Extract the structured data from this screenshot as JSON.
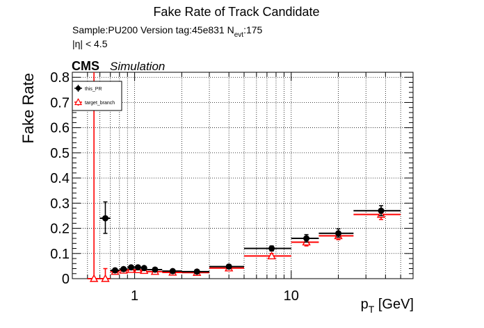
{
  "header": {
    "title": "Fake Rate of Track Candidate",
    "sample_line_a": "Sample:PU200   Version tag:45e831  N",
    "sample_line_sub": "evt",
    "sample_line_b": ":175",
    "eta_line": "|η| < 4.5",
    "cms": "CMS",
    "simulation": "Simulation"
  },
  "chart_data": {
    "type": "scatter",
    "title": "Fake Rate of Track Candidate",
    "xlabel_main": "p",
    "xlabel_sub": "T",
    "xlabel_unit": " [GeV]",
    "ylabel": "Fake Rate",
    "x_scale": "log",
    "xlim": [
      0.4,
      60
    ],
    "ylim": [
      0,
      0.82
    ],
    "y_ticks": [
      0,
      0.1,
      0.2,
      0.3,
      0.4,
      0.5,
      0.6,
      0.7,
      0.8
    ],
    "y_tick_labels": [
      "0",
      "0.1",
      "0.2",
      "0.3",
      "0.4",
      "0.5",
      "0.6",
      "0.7",
      "0.8"
    ],
    "x_ticks": [
      1,
      10
    ],
    "x_tick_labels": [
      "1",
      "10"
    ],
    "grid": true,
    "legend_position": "top-left",
    "series": [
      {
        "name": "this_PR",
        "color": "#000000",
        "marker": "circle",
        "points": [
          {
            "x": 0.65,
            "xlo": 0.6,
            "xhi": 0.7,
            "y": 0.24,
            "ylo": 0.18,
            "yhi": 0.305
          },
          {
            "x": 0.75,
            "xlo": 0.7,
            "xhi": 0.8,
            "y": 0.033,
            "ylo": 0.025,
            "yhi": 0.041
          },
          {
            "x": 0.85,
            "xlo": 0.8,
            "xhi": 0.9,
            "y": 0.038,
            "ylo": 0.031,
            "yhi": 0.045
          },
          {
            "x": 0.95,
            "xlo": 0.9,
            "xhi": 1.0,
            "y": 0.045,
            "ylo": 0.039,
            "yhi": 0.051
          },
          {
            "x": 1.05,
            "xlo": 1.0,
            "xhi": 1.1,
            "y": 0.045,
            "ylo": 0.039,
            "yhi": 0.051
          },
          {
            "x": 1.15,
            "xlo": 1.1,
            "xhi": 1.2,
            "y": 0.042,
            "ylo": 0.036,
            "yhi": 0.048
          },
          {
            "x": 1.35,
            "xlo": 1.2,
            "xhi": 1.5,
            "y": 0.036,
            "ylo": 0.031,
            "yhi": 0.041
          },
          {
            "x": 1.75,
            "xlo": 1.5,
            "xhi": 2.0,
            "y": 0.03,
            "ylo": 0.025,
            "yhi": 0.035
          },
          {
            "x": 2.5,
            "xlo": 2.0,
            "xhi": 3.0,
            "y": 0.028,
            "ylo": 0.023,
            "yhi": 0.033
          },
          {
            "x": 4.0,
            "xlo": 3.0,
            "xhi": 5.0,
            "y": 0.048,
            "ylo": 0.04,
            "yhi": 0.056
          },
          {
            "x": 7.5,
            "xlo": 5.0,
            "xhi": 10.0,
            "y": 0.12,
            "ylo": 0.11,
            "yhi": 0.13
          },
          {
            "x": 12.5,
            "xlo": 10.0,
            "xhi": 15.0,
            "y": 0.16,
            "ylo": 0.145,
            "yhi": 0.175
          },
          {
            "x": 20.0,
            "xlo": 15.0,
            "xhi": 25.0,
            "y": 0.18,
            "ylo": 0.165,
            "yhi": 0.198
          },
          {
            "x": 37.5,
            "xlo": 25.0,
            "xhi": 50.0,
            "y": 0.27,
            "ylo": 0.25,
            "yhi": 0.29
          }
        ]
      },
      {
        "name": "target_branch",
        "color": "#ff0000",
        "marker": "open-triangle",
        "points": [
          {
            "x": 0.55,
            "xlo": 0.5,
            "xhi": 0.6,
            "y": 0.0,
            "ylo": 0.0,
            "yhi": 0.82
          },
          {
            "x": 0.65,
            "xlo": 0.6,
            "xhi": 0.7,
            "y": 0.0,
            "ylo": 0.0,
            "yhi": 0.04
          },
          {
            "x": 0.75,
            "xlo": 0.7,
            "xhi": 0.8,
            "y": 0.028,
            "ylo": 0.021,
            "yhi": 0.035
          },
          {
            "x": 0.85,
            "xlo": 0.8,
            "xhi": 0.9,
            "y": 0.033,
            "ylo": 0.027,
            "yhi": 0.039
          },
          {
            "x": 0.95,
            "xlo": 0.9,
            "xhi": 1.0,
            "y": 0.036,
            "ylo": 0.03,
            "yhi": 0.042
          },
          {
            "x": 1.05,
            "xlo": 1.0,
            "xhi": 1.1,
            "y": 0.035,
            "ylo": 0.029,
            "yhi": 0.041
          },
          {
            "x": 1.15,
            "xlo": 1.1,
            "xhi": 1.2,
            "y": 0.032,
            "ylo": 0.027,
            "yhi": 0.037
          },
          {
            "x": 1.35,
            "xlo": 1.2,
            "xhi": 1.5,
            "y": 0.028,
            "ylo": 0.023,
            "yhi": 0.033
          },
          {
            "x": 1.75,
            "xlo": 1.5,
            "xhi": 2.0,
            "y": 0.025,
            "ylo": 0.02,
            "yhi": 0.03
          },
          {
            "x": 2.5,
            "xlo": 2.0,
            "xhi": 3.0,
            "y": 0.024,
            "ylo": 0.019,
            "yhi": 0.029
          },
          {
            "x": 4.0,
            "xlo": 3.0,
            "xhi": 5.0,
            "y": 0.042,
            "ylo": 0.034,
            "yhi": 0.05
          },
          {
            "x": 7.5,
            "xlo": 5.0,
            "xhi": 10.0,
            "y": 0.09,
            "ylo": 0.08,
            "yhi": 0.1
          },
          {
            "x": 12.5,
            "xlo": 10.0,
            "xhi": 15.0,
            "y": 0.145,
            "ylo": 0.13,
            "yhi": 0.16
          },
          {
            "x": 20.0,
            "xlo": 15.0,
            "xhi": 25.0,
            "y": 0.17,
            "ylo": 0.155,
            "yhi": 0.187
          },
          {
            "x": 37.5,
            "xlo": 25.0,
            "xhi": 50.0,
            "y": 0.255,
            "ylo": 0.235,
            "yhi": 0.275
          }
        ]
      }
    ]
  }
}
